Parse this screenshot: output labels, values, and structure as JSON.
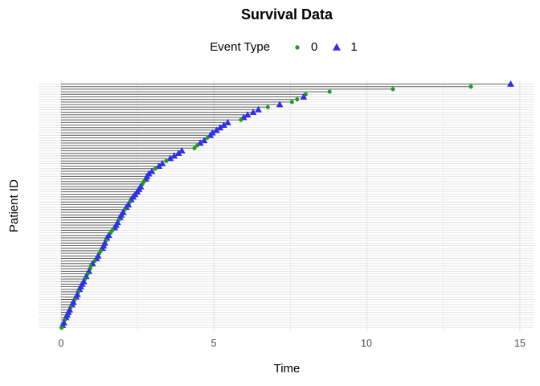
{
  "chart_data": {
    "type": "scatter",
    "title": "Survival Data",
    "legend": {
      "title": "Event Type",
      "items": [
        {
          "label": "0",
          "marker": "circle",
          "color": "#229922"
        },
        {
          "label": "1",
          "marker": "triangle",
          "color": "#3232DC"
        }
      ]
    },
    "xlabel": "Time",
    "ylabel": "Patient ID",
    "x_ticks": [
      "0",
      "5",
      "10",
      "15"
    ],
    "x_tick_values": [
      0,
      5,
      10,
      15
    ],
    "x_minor": [
      2.5,
      7.5,
      12.5
    ],
    "xlim": [
      0,
      15.5
    ],
    "n_patients": 96,
    "grid": true,
    "legend_position": "top",
    "colors": {
      "segment": "#5f5f5f",
      "grid_row": "#e2e2e2",
      "grid_major": "#e2e2e2",
      "grid_minor": "#efefef",
      "background": "#ffffff",
      "tick_label": "#4d4d4d"
    },
    "times": [
      14.7,
      13.4,
      10.85,
      8.78,
      8.0,
      7.93,
      7.72,
      7.55,
      7.15,
      6.76,
      6.45,
      6.28,
      6.1,
      5.97,
      5.88,
      5.45,
      5.32,
      5.2,
      5.08,
      4.95,
      4.88,
      4.78,
      4.68,
      4.55,
      4.45,
      4.36,
      3.95,
      3.84,
      3.7,
      3.57,
      3.44,
      3.31,
      3.2,
      3.08,
      2.97,
      2.87,
      2.81,
      2.77,
      2.71,
      2.66,
      2.6,
      2.55,
      2.49,
      2.42,
      2.36,
      2.29,
      2.25,
      2.2,
      2.13,
      2.08,
      2.03,
      1.97,
      1.93,
      1.89,
      1.85,
      1.8,
      1.75,
      1.68,
      1.62,
      1.56,
      1.5,
      1.47,
      1.43,
      1.39,
      1.35,
      1.3,
      1.25,
      1.21,
      1.16,
      1.1,
      1.03,
      0.97,
      0.95,
      0.91,
      0.87,
      0.82,
      0.78,
      0.74,
      0.69,
      0.64,
      0.6,
      0.57,
      0.53,
      0.49,
      0.45,
      0.4,
      0.36,
      0.32,
      0.28,
      0.24,
      0.2,
      0.16,
      0.12,
      0.09,
      0.05,
      0.02
    ],
    "events": [
      1,
      0,
      0,
      0,
      0,
      1,
      0,
      0,
      1,
      0,
      1,
      1,
      1,
      1,
      0,
      1,
      1,
      1,
      1,
      1,
      1,
      0,
      1,
      1,
      0,
      0,
      1,
      1,
      1,
      1,
      0,
      1,
      1,
      0,
      1,
      1,
      1,
      1,
      0,
      0,
      1,
      1,
      1,
      1,
      1,
      1,
      0,
      1,
      1,
      0,
      1,
      1,
      1,
      0,
      1,
      1,
      1,
      0,
      0,
      1,
      1,
      0,
      1,
      1,
      1,
      0,
      0,
      1,
      1,
      0,
      1,
      0,
      0,
      1,
      0,
      1,
      0,
      1,
      1,
      1,
      1,
      0,
      1,
      1,
      0,
      1,
      1,
      0,
      1,
      1,
      1,
      1,
      0,
      1,
      1,
      0
    ]
  }
}
